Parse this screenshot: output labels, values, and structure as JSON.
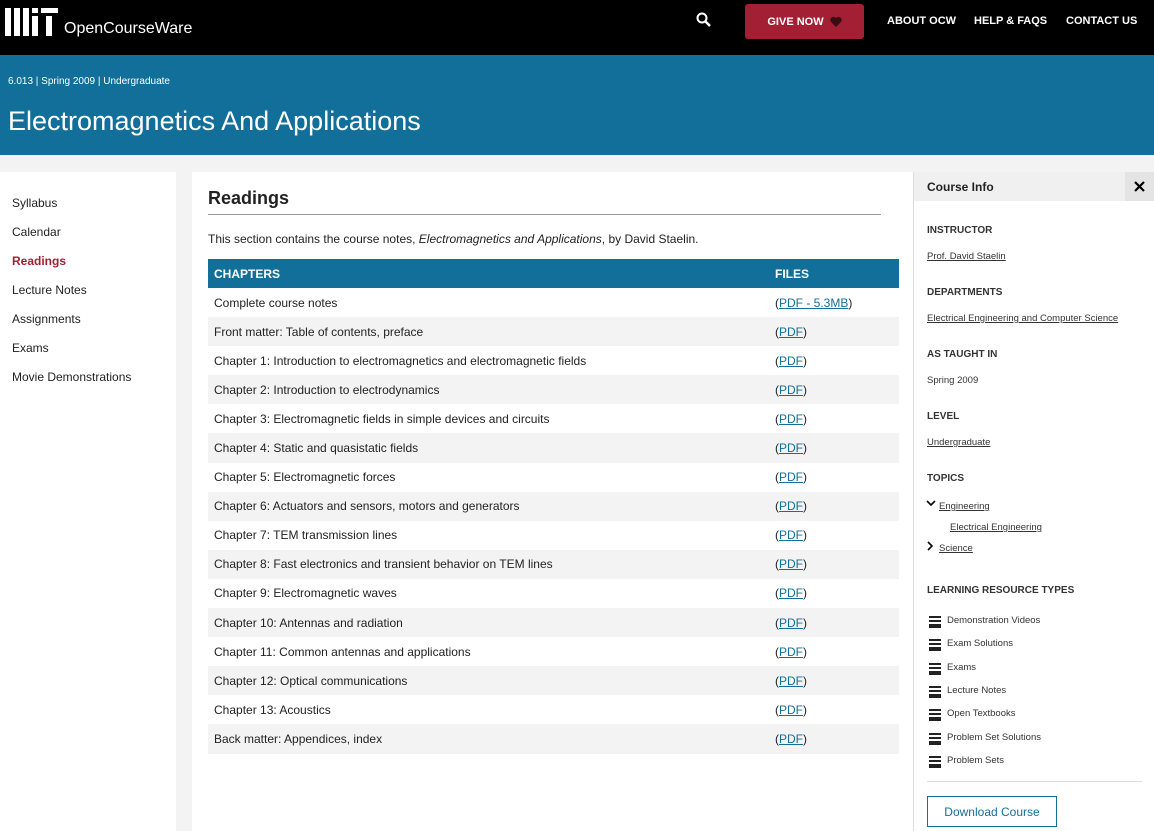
{
  "header": {
    "brand": "OpenCourseWare",
    "give": "GIVE NOW",
    "nav": [
      "ABOUT OCW",
      "HELP & FAQS",
      "CONTACT US"
    ]
  },
  "banner": {
    "meta": "6.013 | Spring 2009 | Undergraduate",
    "title": "Electromagnetics And Applications"
  },
  "sidebar": [
    "Syllabus",
    "Calendar",
    "Readings",
    "Lecture Notes",
    "Assignments",
    "Exams",
    "Movie Demonstrations"
  ],
  "content": {
    "title": "Readings",
    "intro": [
      "This section contains the course notes, ",
      "Electromagnetics and Applications",
      ", by David Staelin."
    ],
    "table": {
      "headers": [
        "CHAPTERS",
        "FILES"
      ],
      "open": "(",
      "close": ")",
      "rows": [
        [
          "Complete course notes",
          "PDF - 5.3MB"
        ],
        [
          "Front matter: Table of contents, preface",
          "PDF"
        ],
        [
          "Chapter 1: Introduction to electromagnetics and electromagnetic fields",
          "PDF"
        ],
        [
          "Chapter 2: Introduction to electrodynamics",
          "PDF"
        ],
        [
          "Chapter 3: Electromagnetic fields in simple devices and circuits",
          "PDF"
        ],
        [
          "Chapter 4: Static and quasistatic fields",
          "PDF"
        ],
        [
          "Chapter 5: Electromagnetic forces",
          "PDF"
        ],
        [
          "Chapter 6: Actuators and sensors, motors and generators",
          "PDF"
        ],
        [
          "Chapter 7: TEM transmission lines",
          "PDF"
        ],
        [
          "Chapter 8: Fast electronics and transient behavior on TEM lines",
          "PDF"
        ],
        [
          "Chapter 9: Electromagnetic waves",
          "PDF"
        ],
        [
          "Chapter 10: Antennas and radiation",
          "PDF"
        ],
        [
          "Chapter 11: Common antennas and applications",
          "PDF"
        ],
        [
          "Chapter 12: Optical communications",
          "PDF"
        ],
        [
          "Chapter 13: Acoustics",
          "PDF"
        ],
        [
          "Back matter: Appendices, index",
          "PDF"
        ]
      ]
    }
  },
  "info": {
    "title": "Course Info",
    "instructor_label": "INSTRUCTOR",
    "instructor": "Prof. David Staelin",
    "departments_label": "DEPARTMENTS",
    "department": "Electrical Engineering and Computer Science",
    "taught_label": "AS TAUGHT IN",
    "taught": "Spring 2009",
    "level_label": "LEVEL",
    "level": "Undergraduate",
    "topics_label": "TOPICS",
    "topics": [
      "Engineering",
      "Electrical Engineering",
      "Science"
    ],
    "resources_label": "LEARNING RESOURCE TYPES",
    "resources": [
      "Demonstration Videos",
      "Exam Solutions",
      "Exams",
      "Lecture Notes",
      "Open Textbooks",
      "Problem Set Solutions",
      "Problem Sets"
    ],
    "download": "Download Course"
  }
}
